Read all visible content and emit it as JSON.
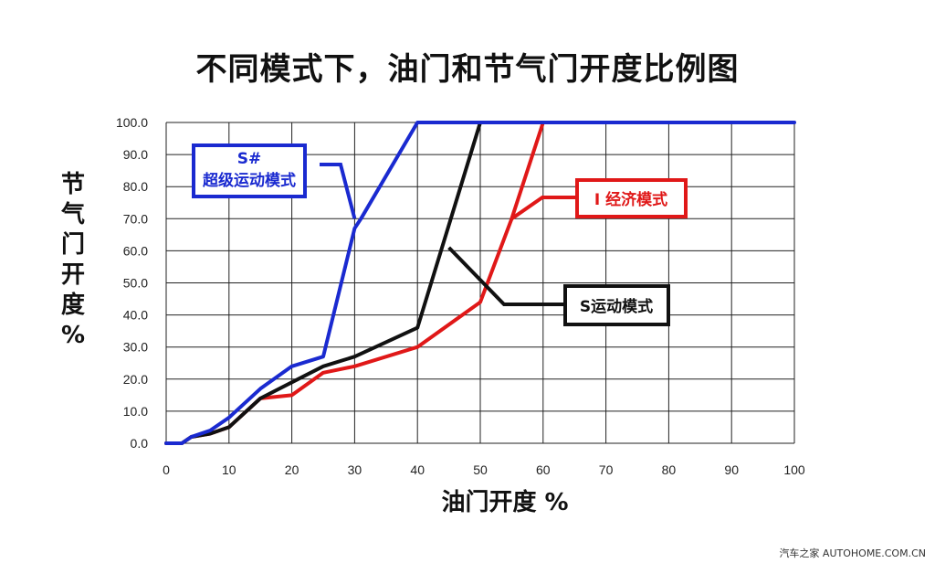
{
  "chart_data": {
    "type": "line",
    "title": "不同模式下，油门和节气门开度比例图",
    "xlabel": "油门开度 %",
    "ylabel": "节气门开度 %",
    "xlim": [
      0,
      100
    ],
    "ylim": [
      0,
      100
    ],
    "x_ticks": [
      "0",
      "10",
      "20",
      "30",
      "40",
      "50",
      "60",
      "70",
      "80",
      "90",
      "100"
    ],
    "y_ticks": [
      "0.0",
      "10.0",
      "20.0",
      "30.0",
      "40.0",
      "50.0",
      "60.0",
      "70.0",
      "80.0",
      "90.0",
      "100.0"
    ],
    "grid": true,
    "series": [
      {
        "name": "S# 超级运动模式",
        "color": "#1a2ad0",
        "points": [
          [
            0,
            0
          ],
          [
            2.5,
            0
          ],
          [
            4,
            2
          ],
          [
            7,
            4
          ],
          [
            10,
            8
          ],
          [
            15,
            17
          ],
          [
            20,
            24
          ],
          [
            25,
            27
          ],
          [
            30,
            67
          ],
          [
            31,
            70
          ],
          [
            40,
            100
          ],
          [
            100,
            100
          ]
        ]
      },
      {
        "name": "S运动模式",
        "color": "#111111",
        "points": [
          [
            0,
            0
          ],
          [
            2.5,
            0
          ],
          [
            4,
            2
          ],
          [
            7,
            3
          ],
          [
            10,
            5
          ],
          [
            15,
            14
          ],
          [
            20,
            19
          ],
          [
            25,
            24
          ],
          [
            30,
            27
          ],
          [
            40,
            36
          ],
          [
            50,
            100
          ]
        ]
      },
      {
        "name": "I 经济模式",
        "color": "#e01818",
        "points": [
          [
            0,
            0
          ],
          [
            2.5,
            0
          ],
          [
            4,
            2
          ],
          [
            7,
            3
          ],
          [
            10,
            5
          ],
          [
            15,
            14
          ],
          [
            20,
            15
          ],
          [
            25,
            22
          ],
          [
            30,
            24
          ],
          [
            40,
            30
          ],
          [
            50,
            44
          ],
          [
            55,
            70
          ],
          [
            60,
            100
          ]
        ]
      }
    ],
    "annotations": [
      {
        "series": "S# 超级运动模式",
        "lines": [
          "S#",
          "超级运动模式"
        ],
        "pointer_to": [
          30,
          70
        ],
        "color": "#1a2ad0"
      },
      {
        "series": "S运动模式",
        "lines": [
          "S运动模式"
        ],
        "pointer_to": [
          45,
          61
        ],
        "color": "#111111"
      },
      {
        "series": "I 经济模式",
        "lines": [
          "I 经济模式"
        ],
        "pointer_to": [
          55,
          70
        ],
        "color": "#e01818"
      }
    ]
  },
  "watermark": "汽车之家 AUTOHOME.COM.CN"
}
